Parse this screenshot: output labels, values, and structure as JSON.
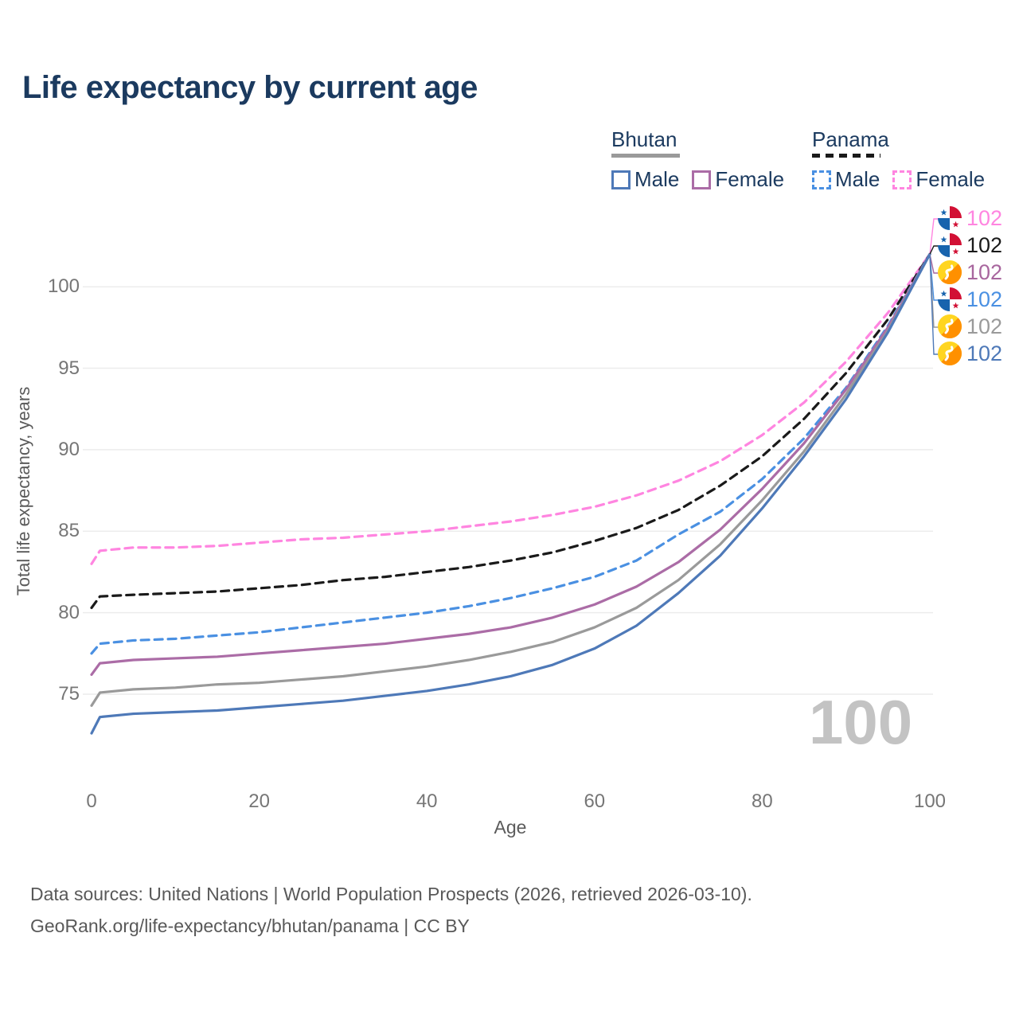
{
  "title": "Life expectancy by current age",
  "legend": {
    "groups": [
      {
        "label": "Bhutan",
        "line_style": "solid",
        "underline_color": "#9a9a9a",
        "items": [
          {
            "label": "Male",
            "color": "#4e79b8",
            "dash": false
          },
          {
            "label": "Female",
            "color": "#ab6ca6",
            "dash": false
          }
        ]
      },
      {
        "label": "Panama",
        "line_style": "dashed",
        "underline_color": "#1a1a1a",
        "items": [
          {
            "label": "Male",
            "color": "#4a90e2",
            "dash": true
          },
          {
            "label": "Female",
            "color": "#ff85e0",
            "dash": true
          }
        ]
      }
    ]
  },
  "chart_data": {
    "type": "line",
    "title": "Life expectancy by current age",
    "xlabel": "Age",
    "ylabel": "Total life expectancy, years",
    "xlim": [
      0,
      100
    ],
    "ylim": [
      72,
      103
    ],
    "xticks": [
      0,
      20,
      40,
      60,
      80,
      100
    ],
    "yticks": [
      75,
      80,
      85,
      90,
      95,
      100
    ],
    "grid": "horizontal",
    "legend_position": "top-right",
    "x": [
      0,
      1,
      5,
      10,
      15,
      20,
      25,
      30,
      35,
      40,
      45,
      50,
      55,
      60,
      65,
      70,
      75,
      80,
      85,
      90,
      95,
      100
    ],
    "series": [
      {
        "name": "Panama Female",
        "country": "Panama",
        "sex": "Female",
        "color": "#ff85e0",
        "dash": true,
        "values": [
          83.0,
          83.8,
          84.0,
          84.0,
          84.1,
          84.3,
          84.5,
          84.6,
          84.8,
          85.0,
          85.3,
          85.6,
          86.0,
          86.5,
          87.2,
          88.1,
          89.3,
          90.9,
          92.9,
          95.4,
          98.4,
          102.0
        ]
      },
      {
        "name": "Panama Total",
        "country": "Panama",
        "sex": "Total",
        "color": "#1a1a1a",
        "dash": true,
        "values": [
          80.3,
          81.0,
          81.1,
          81.2,
          81.3,
          81.5,
          81.7,
          82.0,
          82.2,
          82.5,
          82.8,
          83.2,
          83.7,
          84.4,
          85.2,
          86.3,
          87.8,
          89.6,
          91.9,
          94.7,
          98.0,
          102.0
        ]
      },
      {
        "name": "Panama Male",
        "country": "Panama",
        "sex": "Male",
        "color": "#4a90e2",
        "dash": true,
        "values": [
          77.5,
          78.1,
          78.3,
          78.4,
          78.6,
          78.8,
          79.1,
          79.4,
          79.7,
          80.0,
          80.4,
          80.9,
          81.5,
          82.2,
          83.2,
          84.8,
          86.2,
          88.2,
          90.7,
          93.8,
          97.6,
          102.0
        ]
      },
      {
        "name": "Bhutan Female",
        "country": "Bhutan",
        "sex": "Female",
        "color": "#ab6ca6",
        "dash": false,
        "values": [
          76.2,
          76.9,
          77.1,
          77.2,
          77.3,
          77.5,
          77.7,
          77.9,
          78.1,
          78.4,
          78.7,
          79.1,
          79.7,
          80.5,
          81.6,
          83.1,
          85.1,
          87.6,
          90.4,
          93.7,
          97.5,
          102.0
        ]
      },
      {
        "name": "Bhutan Total",
        "country": "Bhutan",
        "sex": "Total",
        "color": "#9a9a9a",
        "dash": false,
        "values": [
          74.3,
          75.1,
          75.3,
          75.4,
          75.6,
          75.7,
          75.9,
          76.1,
          76.4,
          76.7,
          77.1,
          77.6,
          78.2,
          79.1,
          80.3,
          82.0,
          84.2,
          86.9,
          89.9,
          93.4,
          97.3,
          102.0
        ]
      },
      {
        "name": "Bhutan Male",
        "country": "Bhutan",
        "sex": "Male",
        "color": "#4e79b8",
        "dash": false,
        "values": [
          72.6,
          73.6,
          73.8,
          73.9,
          74.0,
          74.2,
          74.4,
          74.6,
          74.9,
          75.2,
          75.6,
          76.1,
          76.8,
          77.8,
          79.2,
          81.2,
          83.5,
          86.4,
          89.6,
          93.1,
          97.2,
          102.0
        ]
      }
    ]
  },
  "end_labels": [
    {
      "series": "Panama Female",
      "flag": "panama",
      "value": "102",
      "color": "#ff85e0"
    },
    {
      "series": "Panama Total",
      "flag": "panama",
      "value": "102",
      "color": "#1a1a1a"
    },
    {
      "series": "Bhutan Female",
      "flag": "bhutan",
      "value": "102",
      "color": "#a8669e"
    },
    {
      "series": "Panama Male",
      "flag": "panama",
      "value": "102",
      "color": "#4a90e2"
    },
    {
      "series": "Bhutan Total",
      "flag": "bhutan",
      "value": "102",
      "color": "#9a9a9a"
    },
    {
      "series": "Bhutan Male",
      "flag": "bhutan",
      "value": "102",
      "color": "#4e79b8"
    }
  ],
  "watermark": "100",
  "axis": {
    "x_title": "Age",
    "y_title": "Total life expectancy, years"
  },
  "footer": {
    "line1": "Data sources: United Nations | World Population Prospects (2026, retrieved 2026-03-10).",
    "line2": "GeoRank.org/life-expectancy/bhutan/panama | CC BY"
  },
  "colors": {
    "title_text": "#1b3a5f",
    "grid": "#ececec",
    "tick_text": "#767676",
    "axis_title_text": "#5b5b5b",
    "watermark": "#c3c3c3",
    "panama_flag_red": "#d21034",
    "panama_flag_blue": "#1863ad",
    "bhutan_flag_yellow": "#ffd520",
    "bhutan_flag_orange": "#ff9000"
  }
}
